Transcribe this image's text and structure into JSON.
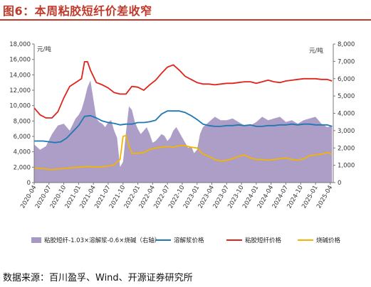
{
  "header": {
    "title": "图6：本周粘胶短纤价差收窄"
  },
  "source": "数据来源：百川盈孚、Wind、开源证券研究所",
  "chart_data": {
    "type": "line",
    "title": "",
    "y_left_unit": "元/吨",
    "y_right_unit": "元/吨",
    "y_left_range": [
      0,
      18000
    ],
    "y_left_ticks": [
      "0",
      "2,000",
      "4,000",
      "6,000",
      "8,000",
      "10,000",
      "12,000",
      "14,000",
      "16,000",
      "18,000"
    ],
    "y_right_range": [
      0,
      8000
    ],
    "y_right_ticks": [
      "0",
      "1,000",
      "2,000",
      "3,000",
      "4,000",
      "5,000",
      "6,000",
      "7,000",
      "8,000"
    ],
    "x_ticks": [
      "2020-04",
      "2020-07",
      "2020-10",
      "2021-01",
      "2021-04",
      "2021-07",
      "2021-10",
      "2022-01",
      "2022-04",
      "2022-07",
      "2022-10",
      "2023-01",
      "2023-04",
      "2023-07",
      "2023-10",
      "2024-01",
      "2024-04",
      "2024-07",
      "2024-10",
      "2025-01",
      "2025-04"
    ],
    "grid": false,
    "legend_position": "bottom",
    "series": [
      {
        "name": "粘胶短纤-1.03×溶解浆-0.6×烧碱（右轴）",
        "type": "area",
        "axis": "right",
        "color": "#a899c4",
        "x": [
          2020.25,
          2020.35,
          2020.45,
          2020.55,
          2020.65,
          2020.75,
          2020.85,
          2020.95,
          2021.0,
          2021.05,
          2021.1,
          2021.15,
          2021.2,
          2021.25,
          2021.3,
          2021.35,
          2021.4,
          2021.45,
          2021.5,
          2021.55,
          2021.6,
          2021.65,
          2021.7,
          2021.75,
          2021.8,
          2021.85,
          2021.9,
          2021.95,
          2022.0,
          2022.05,
          2022.1,
          2022.15,
          2022.2,
          2022.25,
          2022.3,
          2022.35,
          2022.4,
          2022.45,
          2022.5,
          2022.55,
          2022.6,
          2022.65,
          2022.7,
          2022.75,
          2022.8,
          2022.85,
          2022.9,
          2022.95,
          2023.0,
          2023.05,
          2023.1,
          2023.2,
          2023.3,
          2023.4,
          2023.5,
          2023.6,
          2023.7,
          2023.8,
          2023.9,
          2024.0,
          2024.1,
          2024.2,
          2024.3,
          2024.4,
          2024.5,
          2024.6,
          2024.7,
          2024.8,
          2024.9,
          2025.0,
          2025.1,
          2025.2,
          2025.28
        ],
        "values": [
          2200,
          1900,
          2100,
          2800,
          3300,
          3400,
          3000,
          3700,
          3900,
          4200,
          4800,
          5500,
          5900,
          4800,
          3700,
          3500,
          3400,
          3200,
          3500,
          3600,
          3000,
          2600,
          900,
          1200,
          2900,
          4400,
          4200,
          3500,
          3100,
          2800,
          3000,
          3200,
          2800,
          2300,
          2400,
          2600,
          2800,
          2700,
          2400,
          2600,
          3000,
          3200,
          2900,
          2600,
          2300,
          2000,
          2100,
          1700,
          1900,
          2800,
          3200,
          3500,
          3800,
          3600,
          3600,
          3700,
          3500,
          3300,
          3300,
          3500,
          3800,
          3600,
          3700,
          3800,
          3500,
          3600,
          3400,
          3600,
          3700,
          3800,
          3400,
          3200,
          3300
        ]
      },
      {
        "name": "溶解浆价格",
        "type": "line",
        "axis": "left",
        "color": "#1f77b4",
        "x": [
          2020.25,
          2020.4,
          2020.5,
          2020.6,
          2020.7,
          2020.8,
          2020.9,
          2021.0,
          2021.1,
          2021.2,
          2021.3,
          2021.4,
          2021.5,
          2021.6,
          2021.7,
          2021.8,
          2021.9,
          2022.0,
          2022.1,
          2022.2,
          2022.3,
          2022.4,
          2022.5,
          2022.6,
          2022.7,
          2022.8,
          2022.9,
          2023.0,
          2023.1,
          2023.2,
          2023.3,
          2023.4,
          2023.5,
          2023.6,
          2023.7,
          2023.8,
          2023.9,
          2024.0,
          2024.1,
          2024.2,
          2024.3,
          2024.4,
          2024.5,
          2024.6,
          2024.7,
          2024.8,
          2024.9,
          2025.0,
          2025.1,
          2025.2,
          2025.28
        ],
        "values": [
          5400,
          5400,
          5300,
          5200,
          5300,
          5800,
          6600,
          7400,
          8600,
          8700,
          8400,
          8000,
          7800,
          7700,
          7500,
          7600,
          7600,
          7800,
          7800,
          7900,
          8100,
          8900,
          9300,
          9300,
          9300,
          9100,
          8700,
          8200,
          7600,
          7400,
          7300,
          7300,
          7400,
          7400,
          7500,
          7400,
          7500,
          7300,
          7300,
          7400,
          7400,
          7500,
          7500,
          7600,
          7500,
          7600,
          7600,
          7500,
          7500,
          7500,
          7300
        ]
      },
      {
        "name": "粘胶短纤价格",
        "type": "line",
        "axis": "left",
        "color": "#e0231c",
        "x": [
          2020.25,
          2020.35,
          2020.45,
          2020.55,
          2020.65,
          2020.75,
          2020.85,
          2020.95,
          2021.05,
          2021.1,
          2021.15,
          2021.2,
          2021.3,
          2021.4,
          2021.5,
          2021.6,
          2021.7,
          2021.8,
          2021.9,
          2022.0,
          2022.1,
          2022.2,
          2022.3,
          2022.4,
          2022.5,
          2022.6,
          2022.7,
          2022.8,
          2022.9,
          2023.0,
          2023.1,
          2023.2,
          2023.3,
          2023.4,
          2023.5,
          2023.6,
          2023.7,
          2023.8,
          2023.9,
          2024.0,
          2024.1,
          2024.2,
          2024.3,
          2024.4,
          2024.5,
          2024.6,
          2024.7,
          2024.8,
          2024.9,
          2025.0,
          2025.1,
          2025.2,
          2025.28
        ],
        "values": [
          9700,
          8800,
          8400,
          8400,
          9200,
          11000,
          12500,
          13000,
          13500,
          15700,
          15700,
          14600,
          13000,
          12700,
          12300,
          11700,
          11500,
          11500,
          12500,
          12400,
          12000,
          12700,
          13300,
          14200,
          15000,
          15300,
          14600,
          13800,
          13400,
          13000,
          12800,
          12800,
          12700,
          12800,
          12900,
          12900,
          13000,
          13100,
          13100,
          12900,
          13100,
          13300,
          13100,
          13000,
          13200,
          13300,
          13400,
          13500,
          13500,
          13500,
          13400,
          13400,
          13200
        ]
      },
      {
        "name": "烧碱价格",
        "type": "line",
        "axis": "left",
        "color": "#f4b400",
        "x": [
          2020.25,
          2020.4,
          2020.55,
          2020.7,
          2020.85,
          2021.0,
          2021.15,
          2021.3,
          2021.45,
          2021.6,
          2021.7,
          2021.75,
          2021.8,
          2021.85,
          2021.9,
          2022.0,
          2022.1,
          2022.2,
          2022.3,
          2022.4,
          2022.5,
          2022.6,
          2022.7,
          2022.8,
          2022.9,
          2023.0,
          2023.1,
          2023.2,
          2023.3,
          2023.4,
          2023.5,
          2023.6,
          2023.7,
          2023.8,
          2023.9,
          2024.0,
          2024.1,
          2024.2,
          2024.3,
          2024.4,
          2024.5,
          2024.6,
          2024.7,
          2024.8,
          2024.9,
          2025.0,
          2025.1,
          2025.2,
          2025.28
        ],
        "values": [
          1900,
          1800,
          1700,
          1800,
          1900,
          2000,
          2100,
          2000,
          2100,
          2300,
          3000,
          6000,
          6100,
          4800,
          3800,
          3800,
          3900,
          4300,
          4500,
          4600,
          4700,
          4600,
          4800,
          4800,
          4600,
          4500,
          3700,
          3400,
          3000,
          2800,
          2900,
          3100,
          3400,
          3600,
          3200,
          3000,
          3000,
          2900,
          3000,
          3100,
          3200,
          3000,
          2900,
          3100,
          3500,
          3600,
          3700,
          3900,
          3700
        ]
      }
    ]
  }
}
